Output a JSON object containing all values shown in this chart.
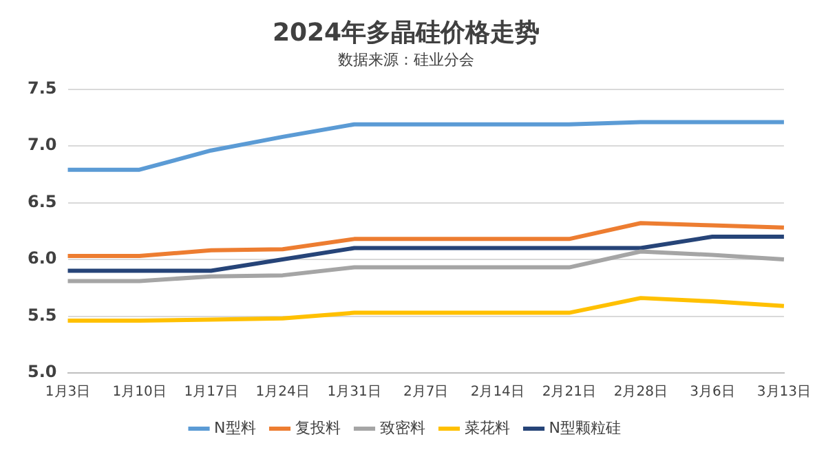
{
  "chart_data": {
    "type": "line",
    "title": "2024年多晶硅价格走势",
    "subtitle": "数据来源：硅业分会",
    "categories": [
      "1月3日",
      "1月10日",
      "1月17日",
      "1月24日",
      "1月31日",
      "2月7日",
      "2月14日",
      "2月21日",
      "2月28日",
      "3月6日",
      "3月13日"
    ],
    "series": [
      {
        "name": "N型料",
        "color": "#5b9bd5",
        "values": [
          6.79,
          6.79,
          6.96,
          7.08,
          7.19,
          7.19,
          7.19,
          7.19,
          7.21,
          7.21,
          7.21
        ]
      },
      {
        "name": "复投料",
        "color": "#ed7d31",
        "values": [
          6.03,
          6.03,
          6.08,
          6.09,
          6.18,
          6.18,
          6.18,
          6.18,
          6.32,
          6.3,
          6.28
        ]
      },
      {
        "name": "致密料",
        "color": "#a5a5a5",
        "values": [
          5.81,
          5.81,
          5.85,
          5.86,
          5.93,
          5.93,
          5.93,
          5.93,
          6.07,
          6.04,
          6.0
        ]
      },
      {
        "name": "菜花料",
        "color": "#ffc000",
        "values": [
          5.46,
          5.46,
          5.47,
          5.48,
          5.53,
          5.53,
          5.53,
          5.53,
          5.66,
          5.63,
          5.59
        ]
      },
      {
        "name": "N型颗粒硅",
        "color": "#264478",
        "values": [
          5.9,
          5.9,
          5.9,
          6.0,
          6.1,
          6.1,
          6.1,
          6.1,
          6.1,
          6.2,
          6.2
        ]
      }
    ],
    "ylim": [
      5.0,
      7.5
    ],
    "yticks": [
      {
        "value": 5,
        "label": "5.0"
      },
      5.5,
      {
        "value": 6,
        "label": "6.0"
      },
      6.5,
      {
        "value": 7,
        "label": "7.0"
      },
      7.5
    ],
    "grid": "y",
    "legend": "bottom",
    "marker": "none",
    "line_style": "solid"
  }
}
